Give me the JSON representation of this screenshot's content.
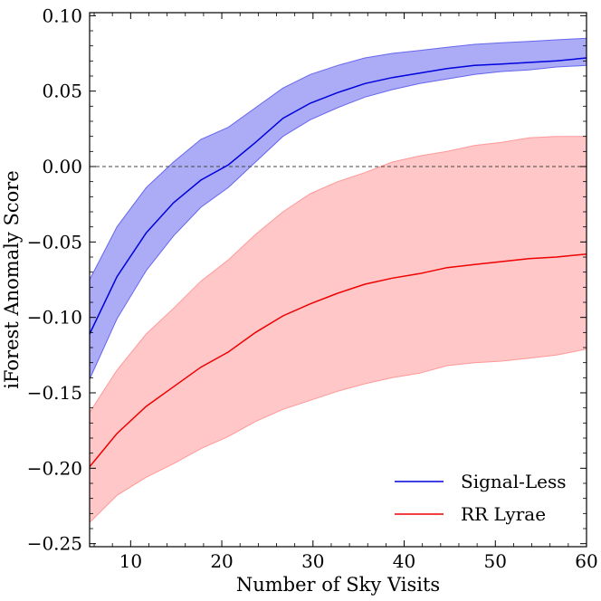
{
  "chart_data": {
    "type": "area",
    "xlabel": "Number of Sky Visits",
    "ylabel": "iForest Anomaly Score",
    "xlim": [
      5.5,
      60
    ],
    "ylim": [
      -0.252,
      0.102
    ],
    "xticks": [
      10,
      20,
      30,
      40,
      50,
      60
    ],
    "xtick_labels": [
      "10",
      "20",
      "30",
      "40",
      "50",
      "60"
    ],
    "yticks": [
      0.1,
      0.05,
      0.0,
      -0.05,
      -0.1,
      -0.15,
      -0.2,
      -0.25
    ],
    "ytick_labels": [
      "0.10",
      "0.05",
      "0.00",
      "−0.05",
      "−0.10",
      "−0.15",
      "−0.20",
      "−0.25"
    ],
    "reference_line": {
      "y": 0.0,
      "style": "dashed",
      "color": "#444444"
    },
    "grid": false,
    "legend_position": "bottom-right",
    "series": [
      {
        "name": "Signal-Less",
        "color": "#0000dd",
        "band_color": "#6666ee",
        "x": [
          5.5,
          8.5,
          11.7,
          14.7,
          17.7,
          20.7,
          23.7,
          26.7,
          29.7,
          32.7,
          35.7,
          38.7,
          41.7,
          44.7,
          47.7,
          50.7,
          53.7,
          56.7,
          60
        ],
        "mean": [
          -0.111,
          -0.073,
          -0.044,
          -0.024,
          -0.009,
          0.001,
          0.016,
          0.032,
          0.042,
          0.049,
          0.055,
          0.059,
          0.062,
          0.065,
          0.067,
          0.068,
          0.069,
          0.07,
          0.072
        ],
        "lower": [
          -0.141,
          -0.101,
          -0.069,
          -0.046,
          -0.027,
          -0.014,
          0.003,
          0.02,
          0.031,
          0.039,
          0.046,
          0.051,
          0.055,
          0.058,
          0.061,
          0.063,
          0.064,
          0.066,
          0.067
        ],
        "upper": [
          -0.075,
          -0.04,
          -0.014,
          0.003,
          0.018,
          0.026,
          0.039,
          0.052,
          0.061,
          0.067,
          0.072,
          0.075,
          0.077,
          0.079,
          0.081,
          0.082,
          0.083,
          0.084,
          0.085
        ]
      },
      {
        "name": "RR Lyrae",
        "color": "#ee0000",
        "band_color": "#ff9999",
        "x": [
          5.5,
          8.5,
          11.7,
          14.7,
          17.7,
          20.7,
          23.7,
          26.7,
          29.7,
          32.7,
          35.7,
          38.7,
          41.7,
          44.7,
          47.7,
          50.7,
          53.7,
          56.7,
          60
        ],
        "mean": [
          -0.199,
          -0.177,
          -0.159,
          -0.146,
          -0.133,
          -0.123,
          -0.11,
          -0.099,
          -0.091,
          -0.084,
          -0.078,
          -0.074,
          -0.071,
          -0.067,
          -0.065,
          -0.063,
          -0.061,
          -0.06,
          -0.058
        ],
        "lower": [
          -0.236,
          -0.218,
          -0.206,
          -0.197,
          -0.187,
          -0.179,
          -0.169,
          -0.161,
          -0.155,
          -0.149,
          -0.144,
          -0.14,
          -0.137,
          -0.132,
          -0.13,
          -0.129,
          -0.127,
          -0.125,
          -0.121
        ],
        "upper": [
          -0.163,
          -0.135,
          -0.111,
          -0.094,
          -0.076,
          -0.062,
          -0.045,
          -0.03,
          -0.018,
          -0.01,
          -0.004,
          0.003,
          0.007,
          0.01,
          0.014,
          0.016,
          0.019,
          0.02,
          0.02
        ]
      }
    ]
  }
}
